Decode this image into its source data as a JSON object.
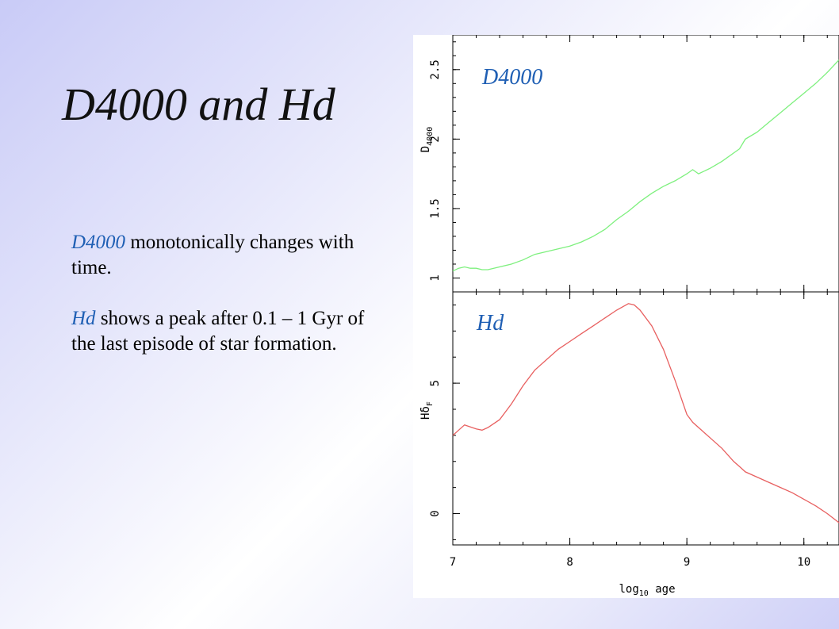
{
  "slide": {
    "title": "D4000 and Hd",
    "p1_term": "D4000",
    "p1_rest": " monotonically changes with time.",
    "p2_term": "Hd",
    "p2_rest": " shows a peak after 0.1 – 1 Gyr of the last episode of star formation."
  },
  "chart_data": [
    {
      "type": "line",
      "title": "D4000",
      "xlabel": "log10 age",
      "ylabel": "D4000",
      "xlim": [
        7,
        10.3
      ],
      "ylim": [
        0.9,
        2.75
      ],
      "yticks": [
        1,
        1.5,
        2,
        2.5
      ],
      "ytick_labels": [
        "1",
        "1.5",
        "2",
        "2.5"
      ],
      "series": [
        {
          "color": "#7ef07e",
          "x": [
            7.0,
            7.05,
            7.1,
            7.15,
            7.2,
            7.25,
            7.3,
            7.4,
            7.5,
            7.6,
            7.7,
            7.8,
            7.9,
            8.0,
            8.1,
            8.2,
            8.3,
            8.4,
            8.5,
            8.6,
            8.7,
            8.8,
            8.9,
            9.0,
            9.05,
            9.1,
            9.2,
            9.3,
            9.4,
            9.45,
            9.5,
            9.6,
            9.7,
            9.8,
            9.9,
            10.0,
            10.1,
            10.2,
            10.3
          ],
          "y": [
            1.05,
            1.07,
            1.08,
            1.07,
            1.07,
            1.06,
            1.06,
            1.08,
            1.1,
            1.13,
            1.17,
            1.19,
            1.21,
            1.23,
            1.26,
            1.3,
            1.35,
            1.42,
            1.48,
            1.55,
            1.61,
            1.66,
            1.7,
            1.75,
            1.78,
            1.75,
            1.79,
            1.84,
            1.9,
            1.93,
            2.0,
            2.05,
            2.12,
            2.19,
            2.26,
            2.33,
            2.4,
            2.48,
            2.57
          ]
        }
      ]
    },
    {
      "type": "line",
      "title": "Hd",
      "xlabel": "log10 age",
      "ylabel": "HδF",
      "xlim": [
        7,
        10.3
      ],
      "ylim": [
        -1.2,
        8.5
      ],
      "yticks": [
        0,
        5
      ],
      "ytick_labels": [
        "0",
        "5"
      ],
      "xticks": [
        7,
        8,
        9,
        10
      ],
      "xtick_labels": [
        "7",
        "8",
        "9",
        "10"
      ],
      "series": [
        {
          "color": "#e86060",
          "x": [
            7.0,
            7.05,
            7.1,
            7.2,
            7.25,
            7.3,
            7.4,
            7.5,
            7.6,
            7.7,
            7.8,
            7.9,
            8.0,
            8.1,
            8.2,
            8.3,
            8.4,
            8.5,
            8.55,
            8.6,
            8.7,
            8.8,
            8.9,
            9.0,
            9.05,
            9.1,
            9.2,
            9.3,
            9.4,
            9.45,
            9.5,
            9.6,
            9.7,
            9.8,
            9.9,
            10.0,
            10.1,
            10.2,
            10.3
          ],
          "y": [
            3.0,
            3.2,
            3.4,
            3.25,
            3.2,
            3.3,
            3.6,
            4.2,
            4.9,
            5.5,
            5.9,
            6.3,
            6.6,
            6.9,
            7.2,
            7.5,
            7.8,
            8.05,
            8.0,
            7.8,
            7.2,
            6.3,
            5.1,
            3.8,
            3.5,
            3.3,
            2.9,
            2.5,
            2.0,
            1.8,
            1.6,
            1.4,
            1.2,
            1.0,
            0.8,
            0.55,
            0.3,
            0.0,
            -0.35
          ]
        }
      ]
    }
  ]
}
